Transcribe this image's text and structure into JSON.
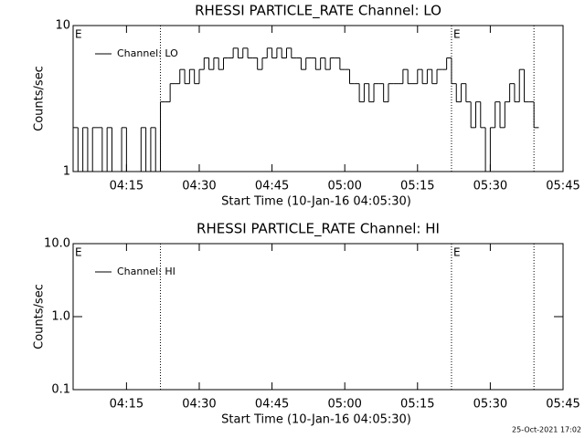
{
  "chart_data": [
    {
      "type": "line",
      "title": "RHESSI PARTICLE_RATE Channel: LO",
      "xlabel": "Start Time (10-Jan-16 04:05:30)",
      "ylabel": "Counts/sec",
      "log_y": true,
      "ylim": [
        1,
        10
      ],
      "yticks": [
        1,
        10
      ],
      "xlim": [
        "04:04",
        "05:45"
      ],
      "xticks": [
        "04:15",
        "04:30",
        "04:45",
        "05:00",
        "05:15",
        "05:30",
        "05:45"
      ],
      "step": true,
      "legend": "top-left",
      "vlines": [
        "04:22",
        "05:22",
        "05:39"
      ],
      "annotations": [
        {
          "x": "04:04",
          "text": "E"
        },
        {
          "x": "05:22",
          "text": "E"
        }
      ],
      "series": [
        {
          "name": "Channel: LO",
          "color": "#000000",
          "x": [
            "04:04",
            "04:05",
            "04:06",
            "04:07",
            "04:08",
            "04:09",
            "04:10",
            "04:11",
            "04:12",
            "04:13",
            "04:14",
            "04:15",
            "04:16",
            "04:17",
            "04:18",
            "04:19",
            "04:20",
            "04:21",
            "04:22",
            "04:23",
            "04:24",
            "04:25",
            "04:26",
            "04:27",
            "04:28",
            "04:29",
            "04:30",
            "04:31",
            "04:32",
            "04:33",
            "04:34",
            "04:35",
            "04:36",
            "04:37",
            "04:38",
            "04:39",
            "04:40",
            "04:41",
            "04:42",
            "04:43",
            "04:44",
            "04:45",
            "04:46",
            "04:47",
            "04:48",
            "04:49",
            "04:50",
            "04:51",
            "04:52",
            "04:53",
            "04:54",
            "04:55",
            "04:56",
            "04:57",
            "04:58",
            "04:59",
            "05:00",
            "05:01",
            "05:02",
            "05:03",
            "05:04",
            "05:05",
            "05:06",
            "05:07",
            "05:08",
            "05:09",
            "05:10",
            "05:11",
            "05:12",
            "05:13",
            "05:14",
            "05:15",
            "05:16",
            "05:17",
            "05:18",
            "05:19",
            "05:20",
            "05:21",
            "05:22",
            "05:23",
            "05:24",
            "05:25",
            "05:26",
            "05:27",
            "05:28",
            "05:29",
            "05:30",
            "05:31",
            "05:32",
            "05:33",
            "05:34",
            "05:35",
            "05:36",
            "05:37",
            "05:38",
            "05:39"
          ],
          "values": [
            2,
            1,
            2,
            1,
            2,
            2,
            1,
            2,
            1,
            1,
            2,
            1,
            1,
            1,
            2,
            1,
            2,
            1,
            3,
            3,
            4,
            4,
            5,
            4,
            5,
            4,
            5,
            6,
            5,
            6,
            5,
            6,
            6,
            7,
            6,
            7,
            6,
            6,
            5,
            6,
            7,
            6,
            7,
            6,
            7,
            6,
            6,
            5,
            6,
            6,
            5,
            6,
            5,
            6,
            6,
            5,
            5,
            4,
            4,
            3,
            4,
            3,
            4,
            4,
            3,
            4,
            4,
            4,
            5,
            4,
            4,
            5,
            4,
            5,
            4,
            5,
            5,
            6,
            4,
            3,
            4,
            3,
            2,
            3,
            2,
            1,
            2,
            3,
            2,
            3,
            4,
            3,
            5,
            3,
            3,
            2
          ]
        }
      ]
    },
    {
      "type": "line",
      "title": "RHESSI PARTICLE_RATE Channel: HI",
      "xlabel": "Start Time (10-Jan-16 04:05:30)",
      "ylabel": "Counts/sec",
      "log_y": true,
      "ylim": [
        0.1,
        10
      ],
      "yticks": [
        {
          "value": 0.1,
          "label": "0.1"
        },
        {
          "value": 1,
          "label": "1.0"
        },
        {
          "value": 10,
          "label": "10.0"
        }
      ],
      "xlim": [
        "04:04",
        "05:45"
      ],
      "xticks": [
        "04:15",
        "04:30",
        "04:45",
        "05:00",
        "05:15",
        "05:30",
        "05:45"
      ],
      "step": true,
      "legend": "top-left",
      "vlines": [
        "04:22",
        "05:22",
        "05:39"
      ],
      "annotations": [
        {
          "x": "04:04",
          "text": "E"
        },
        {
          "x": "05:22",
          "text": "E"
        }
      ],
      "series": [
        {
          "name": "Channel: HI",
          "color": "#000000",
          "x": [],
          "values": []
        }
      ]
    }
  ],
  "footer": "25-Oct-2021 17:02"
}
